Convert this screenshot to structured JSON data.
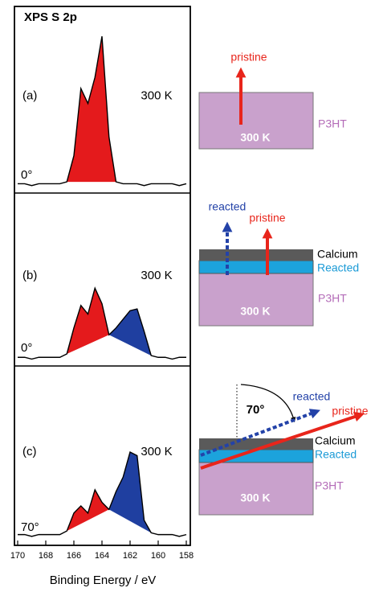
{
  "chart_data": {
    "type": "line",
    "title": "XPS S 2p",
    "x_label": "Binding Energy / eV",
    "xlim": [
      170,
      158
    ],
    "xticks": [
      170,
      168,
      166,
      164,
      162,
      160,
      158
    ],
    "ylim": [
      0,
      100
    ],
    "x": [
      170,
      169.5,
      169,
      168.5,
      168,
      167.5,
      167,
      166.5,
      166,
      165.5,
      165,
      164.5,
      164,
      163.5,
      163,
      162.5,
      162,
      161.5,
      161,
      160.5,
      160,
      159.5,
      159,
      158.5,
      158
    ],
    "panels": [
      {
        "label": "(a)",
        "temperature": "300 K",
        "angle": "0°",
        "values": [
          5,
          5,
          4,
          5,
          5,
          5,
          5,
          6,
          20,
          56,
          48,
          62,
          84,
          30,
          6,
          5,
          5,
          5,
          4,
          5,
          5,
          5,
          5,
          4,
          5
        ],
        "fills": [
          {
            "color": "#e41a1c",
            "range": [
              166.5,
              163
            ]
          }
        ],
        "diagram": {
          "arrow_a": "pristine",
          "box": "300 K",
          "material": "P3HT"
        }
      },
      {
        "label": "(b)",
        "temperature": "300 K",
        "angle": "0°",
        "values": [
          5,
          5,
          4,
          5,
          5,
          5,
          5,
          7,
          22,
          35,
          30,
          45,
          36,
          18,
          22,
          27,
          32,
          33,
          20,
          6,
          5,
          5,
          4,
          5,
          5
        ],
        "fills": [
          {
            "color": "#e41a1c",
            "range": [
              166.5,
              163.5
            ]
          },
          {
            "color": "#1f3fa0",
            "range": [
              163.5,
              160.5
            ]
          }
        ],
        "diagram": {
          "arrow_b": "reacted",
          "arrow_a": "pristine",
          "top_layer": "Calcium",
          "mid_layer": "Reacted",
          "box": "300 K",
          "material": "P3HT"
        }
      },
      {
        "label": "(c)",
        "temperature": "300 K",
        "angle": "70°",
        "values": [
          6,
          6,
          5,
          6,
          6,
          6,
          6,
          8,
          18,
          22,
          18,
          31,
          24,
          20,
          30,
          38,
          52,
          50,
          14,
          7,
          6,
          6,
          6,
          5,
          6
        ],
        "fills": [
          {
            "color": "#e41a1c",
            "range": [
              166.5,
              163.5
            ]
          },
          {
            "color": "#1f3fa0",
            "range": [
              163.5,
              160.5
            ]
          }
        ],
        "diagram": {
          "tilt": "70°",
          "arrow_b": "reacted",
          "arrow_a": "pristine",
          "top_layer": "Calcium",
          "mid_layer": "Reacted",
          "box": "300 K",
          "material": "P3HT"
        }
      }
    ]
  }
}
